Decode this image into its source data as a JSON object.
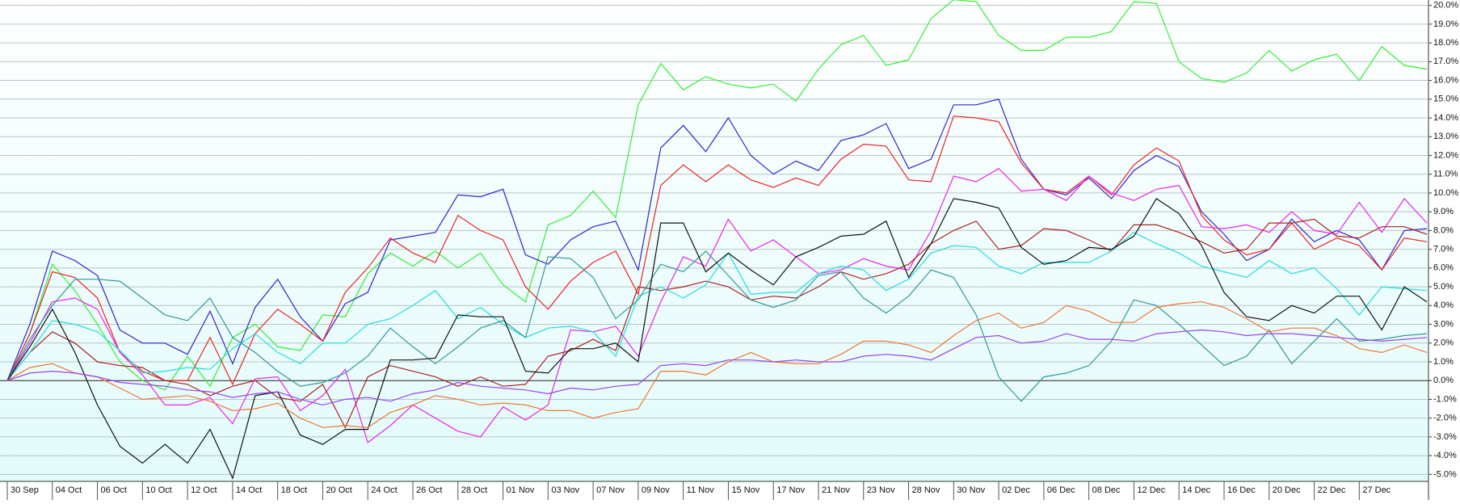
{
  "chart_data": {
    "type": "line",
    "categories": [
      "30 Sep",
      null,
      "04 Oct",
      null,
      "06 Oct",
      null,
      "10 Oct",
      null,
      "12 Oct",
      null,
      "14 Oct",
      null,
      "18 Oct",
      null,
      "20 Oct",
      null,
      "24 Oct",
      null,
      "26 Oct",
      null,
      "28 Oct",
      null,
      "01 Nov",
      null,
      "03 Nov",
      null,
      "07 Nov",
      null,
      "09 Nov",
      null,
      "11 Nov",
      null,
      "15 Nov",
      null,
      "17 Nov",
      null,
      "21 Nov",
      null,
      "23 Nov",
      null,
      "28 Nov",
      null,
      "30 Nov",
      null,
      "02 Dec",
      null,
      "06 Dec",
      null,
      "08 Dec",
      null,
      "12 Dec",
      null,
      "14 Dec",
      null,
      "16 Dec",
      null,
      "20 Dec",
      null,
      "22 Dec",
      null,
      "27 Dec",
      null,
      null,
      null
    ],
    "ylim": [
      -5.2,
      20.2
    ],
    "yticks": [
      {
        "value": 20,
        "label": "20.0%"
      },
      {
        "value": 19,
        "label": "19.0%"
      },
      {
        "value": 18,
        "label": "18.0%"
      },
      {
        "value": 17,
        "label": "17.0%"
      },
      {
        "value": 16,
        "label": "16.0%"
      },
      {
        "value": 15,
        "label": "15.0%"
      },
      {
        "value": 14,
        "label": "14.0%"
      },
      {
        "value": 13,
        "label": "13.0%"
      },
      {
        "value": 12,
        "label": "12.0%"
      },
      {
        "value": 11,
        "label": "11.0%"
      },
      {
        "value": 10,
        "label": "10.0%"
      },
      {
        "value": 9,
        "label": "9.0%"
      },
      {
        "value": 8,
        "label": "8.0%"
      },
      {
        "value": 7,
        "label": "7.0%"
      },
      {
        "value": 6,
        "label": "6.0%"
      },
      {
        "value": 5,
        "label": "5.0%"
      },
      {
        "value": 4,
        "label": "4.0%"
      },
      {
        "value": 3,
        "label": "3.0%"
      },
      {
        "value": 2,
        "label": "2.0%"
      },
      {
        "value": 1,
        "label": "1.0%"
      },
      {
        "value": 0,
        "label": "0.0%"
      },
      {
        "value": -1,
        "label": "-1.0%"
      },
      {
        "value": -2,
        "label": "-2.0%"
      },
      {
        "value": -3,
        "label": "-3.0%"
      },
      {
        "value": -4,
        "label": "-4.0%"
      },
      {
        "value": -5,
        "label": "-5.0%"
      }
    ],
    "grid": true,
    "series": [
      {
        "color": "#33ee33",
        "values": [
          0,
          2.5,
          6.2,
          4.8,
          3,
          1,
          0,
          -0.5,
          1.3,
          -0.3,
          2.3,
          3,
          1.8,
          1.6,
          3.5,
          3.4,
          5.7,
          6.8,
          6.1,
          6.9,
          6,
          6.8,
          5.1,
          4.2,
          8.3,
          8.8,
          10.1,
          8.7,
          14.7,
          16.9,
          15.5,
          16.2,
          15.8,
          15.6,
          15.8,
          14.9,
          16.6,
          17.9,
          18.4,
          16.8,
          17.1,
          19.3,
          20.3,
          20.2,
          18.4,
          17.6,
          17.6,
          18.3,
          18.3,
          18.6,
          20.2,
          20.1,
          17,
          16.1,
          15.9,
          16.4,
          17.6,
          16.5,
          17.1,
          17.4,
          16,
          17.8,
          16.8,
          16.6
        ]
      },
      {
        "color": "#3322cc",
        "values": [
          0,
          3,
          6.9,
          6.4,
          5.6,
          2.7,
          2,
          2,
          1.4,
          3.7,
          0.9,
          3.9,
          5.4,
          3.4,
          2.1,
          4.1,
          4.7,
          7.5,
          7.7,
          7.9,
          9.9,
          9.8,
          10.2,
          6.7,
          6.2,
          7.5,
          8.2,
          8.5,
          5.9,
          12.4,
          13.6,
          12.2,
          14,
          12,
          11,
          11.7,
          11.2,
          12.8,
          13.1,
          13.7,
          11.3,
          11.8,
          14.7,
          14.7,
          15,
          11.8,
          10.2,
          9.9,
          10.8,
          9.7,
          11.2,
          12,
          11.4,
          9,
          7.8,
          6.4,
          7,
          8.6,
          7.4,
          8,
          7.5,
          5.9,
          8,
          8.1
        ]
      },
      {
        "color": "#ee2222",
        "values": [
          0,
          2.5,
          5.8,
          5.5,
          4.4,
          1.5,
          0.5,
          0,
          0,
          2.3,
          -0.2,
          2.5,
          3.8,
          3,
          2.1,
          4.7,
          6,
          7.6,
          6.8,
          6.3,
          8.8,
          8,
          7.5,
          5,
          3.8,
          5.3,
          6.3,
          6.9,
          4.6,
          10.4,
          11.5,
          10.6,
          11.5,
          10.7,
          10.3,
          10.8,
          10.4,
          11.8,
          12.6,
          12.5,
          10.7,
          10.6,
          14.1,
          14,
          13.8,
          11.6,
          10.2,
          10,
          10.9,
          9.9,
          11.5,
          12.4,
          11.7,
          8.8,
          7.5,
          6.7,
          7,
          8.4,
          7,
          7.6,
          7.2,
          5.9,
          7.6,
          7.4
        ]
      },
      {
        "color": "#ee22ee",
        "values": [
          0,
          2,
          4.2,
          4.4,
          3.8,
          1.5,
          0.3,
          -1.3,
          -1.3,
          -0.9,
          -2.3,
          0.1,
          0.2,
          -1.6,
          -0.8,
          0.6,
          -3.3,
          -2.4,
          -1.3,
          -2,
          -2.7,
          -3,
          -1.4,
          -2.1,
          -1.3,
          2.7,
          2.6,
          2.9,
          1.3,
          4.2,
          6.6,
          6.1,
          8.6,
          6.9,
          7.5,
          6.6,
          5.7,
          5.9,
          6.5,
          6.1,
          5.9,
          8,
          10.9,
          10.6,
          11.3,
          10.1,
          10.2,
          9.6,
          10.9,
          10,
          9.6,
          10.2,
          10.4,
          8.2,
          8.1,
          8.3,
          7.9,
          9,
          8,
          7.8,
          9.5,
          7.9,
          9.7,
          8.4
        ]
      },
      {
        "color": "#aa2222",
        "values": [
          0,
          1.5,
          2.6,
          2,
          1,
          0.8,
          0.7,
          0,
          -0.2,
          -0.8,
          -0.3,
          0,
          -0.9,
          -1.1,
          -0.2,
          -2.5,
          0.2,
          0.8,
          0.5,
          0.2,
          -0.3,
          0.2,
          -0.3,
          -0.2,
          1.3,
          1.6,
          2.2,
          1.6,
          5,
          4.8,
          5,
          5.3,
          5,
          4.3,
          4.5,
          4.4,
          5,
          5.8,
          5.4,
          5.7,
          6.2,
          7.3,
          8,
          8.5,
          7,
          7.2,
          8.1,
          8,
          7.5,
          6.9,
          8.3,
          8.3,
          7.9,
          7.4,
          6.8,
          7,
          8.4,
          8.4,
          8.6,
          7.7,
          7.6,
          8.2,
          8.2,
          7.8
        ]
      },
      {
        "color": "#22dddd",
        "values": [
          0,
          1.5,
          3.2,
          3,
          2.6,
          1.6,
          0.4,
          0.5,
          0.7,
          0.6,
          1.7,
          2.5,
          1.5,
          0.9,
          2,
          2,
          3,
          3.3,
          4,
          4.8,
          3.3,
          3.9,
          3,
          2.3,
          2.8,
          2.9,
          2.6,
          1.3,
          4.5,
          5,
          4.4,
          5.1,
          6.8,
          4.6,
          4.7,
          4.7,
          5.7,
          6.1,
          5.9,
          4.8,
          5.4,
          6.8,
          7.2,
          7.1,
          6.1,
          5.7,
          6.3,
          6.3,
          6.3,
          6.9,
          7.9,
          7.3,
          6.8,
          6.1,
          5.8,
          5.5,
          6.4,
          5.7,
          6,
          4.9,
          3.5,
          5,
          4.9,
          4.8
        ]
      },
      {
        "color": "#339999",
        "values": [
          0,
          2.2,
          4,
          5.4,
          5.4,
          5.3,
          4.4,
          3.5,
          3.2,
          4.4,
          2.3,
          1.5,
          0.5,
          -0.3,
          -0.1,
          0.4,
          1.3,
          2.8,
          1.8,
          0.9,
          1.8,
          2.8,
          3.2,
          2.3,
          6.6,
          6.5,
          5.5,
          3.3,
          4.3,
          6.2,
          5.8,
          6.9,
          5.6,
          4.3,
          3.9,
          4.3,
          5.6,
          5.8,
          4.4,
          3.6,
          4.5,
          5.9,
          5.5,
          3.5,
          0.2,
          -1.1,
          0.2,
          0.4,
          0.8,
          2.1,
          4.3,
          4,
          3,
          1.9,
          0.8,
          1.3,
          2.7,
          0.9,
          2.1,
          3.3,
          2.1,
          2.2,
          2.4,
          2.5
        ]
      },
      {
        "color": "#111111",
        "values": [
          0,
          1.8,
          3.8,
          1.5,
          -1.3,
          -3.5,
          -4.4,
          -3.4,
          -4.4,
          -2.6,
          -5.2,
          -0.8,
          -0.6,
          -2.9,
          -3.4,
          -2.6,
          -2.6,
          1.1,
          1.1,
          1.2,
          3.5,
          3.4,
          3.4,
          0.5,
          0.4,
          1.7,
          1.7,
          2,
          1,
          8.4,
          8.4,
          5.8,
          6.8,
          5.9,
          5.1,
          6.6,
          7.1,
          7.7,
          7.8,
          8.5,
          5.5,
          7.3,
          9.7,
          9.5,
          9.2,
          7.1,
          6.2,
          6.4,
          7.1,
          7,
          7.7,
          9.7,
          8.9,
          7.2,
          4.7,
          3.4,
          3.2,
          4,
          3.6,
          4.5,
          4.5,
          2.7,
          5,
          4.2
        ]
      },
      {
        "color": "#ee7733",
        "values": [
          0,
          0.7,
          0.9,
          0.4,
          0.2,
          -0.4,
          -1,
          -0.9,
          -0.8,
          -1.1,
          -1.6,
          -1.5,
          -1.2,
          -2,
          -2.5,
          -2.4,
          -2.5,
          -1.7,
          -1.3,
          -0.8,
          -1,
          -1.3,
          -1.2,
          -1.3,
          -1.6,
          -1.6,
          -2,
          -1.7,
          -1.5,
          0.5,
          0.5,
          0.3,
          1,
          1.5,
          1,
          0.9,
          0.9,
          1.4,
          2.1,
          2.1,
          1.9,
          1.5,
          2.4,
          3.2,
          3.6,
          2.8,
          3.1,
          4,
          3.7,
          3.1,
          3.1,
          3.9,
          4.1,
          4.2,
          3.9,
          3.3,
          2.6,
          2.8,
          2.8,
          2.4,
          1.7,
          1.5,
          1.9,
          1.5
        ]
      },
      {
        "color": "#9944ee",
        "values": [
          0,
          0.4,
          0.5,
          0.4,
          0.2,
          -0.1,
          -0.2,
          -0.3,
          -0.5,
          -0.6,
          -0.9,
          -0.7,
          -0.6,
          -1,
          -1.3,
          -1,
          -0.9,
          -1.1,
          -0.7,
          -0.5,
          -0.1,
          -0.3,
          -0.4,
          -0.5,
          -0.7,
          -0.4,
          -0.5,
          -0.3,
          -0.2,
          0.8,
          0.9,
          0.8,
          1.1,
          1.1,
          1,
          1.1,
          1,
          1,
          1.3,
          1.4,
          1.3,
          1.1,
          1.7,
          2.3,
          2.4,
          2,
          2.1,
          2.5,
          2.2,
          2.2,
          2.1,
          2.5,
          2.6,
          2.7,
          2.6,
          2.4,
          2.5,
          2.5,
          2.4,
          2.3,
          2.2,
          2.1,
          2.2,
          2.3
        ]
      }
    ]
  }
}
